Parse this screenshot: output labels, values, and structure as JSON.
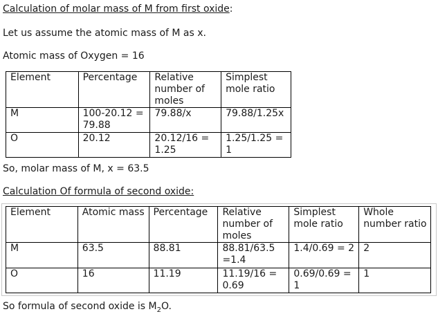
{
  "heading1": "Calculation of molar mass of M from first oxide",
  "heading1_suffix": ":",
  "assume_text": "Let us assume the atomic mass of M as x.",
  "oxygen_text": "Atomic mass of Oxygen = 16",
  "table1": {
    "headers": [
      "Element",
      "Percentage",
      "Relative number of moles",
      "Simplest mole ratio"
    ],
    "rows": [
      [
        "M",
        "100-20.12 = 79.88",
        "79.88/x",
        "79.88/1.25x"
      ],
      [
        "O",
        "20.12",
        "20.12/16 = 1.25",
        "1.25/1.25 = 1"
      ]
    ]
  },
  "conclusion1": "So, molar mass of M, x = 63.5",
  "heading2": "Calculation Of formula of second oxide:",
  "table2": {
    "headers": [
      "Element",
      "Atomic mass",
      "Percentage",
      "Relative number of moles",
      "Simplest mole ratio",
      "Whole number ratio"
    ],
    "rows": [
      [
        "M",
        "63.5",
        "88.81",
        "88.81/63.5 =1.4",
        "1.4/0.69 = 2",
        "2"
      ],
      [
        "O",
        "16",
        "11.19",
        "11.19/16 = 0.69",
        "0.69/0.69 = 1",
        "1"
      ]
    ]
  },
  "conclusion2_prefix": "So formula of second oxide is M",
  "conclusion2_sub": "2",
  "conclusion2_suffix": "O."
}
